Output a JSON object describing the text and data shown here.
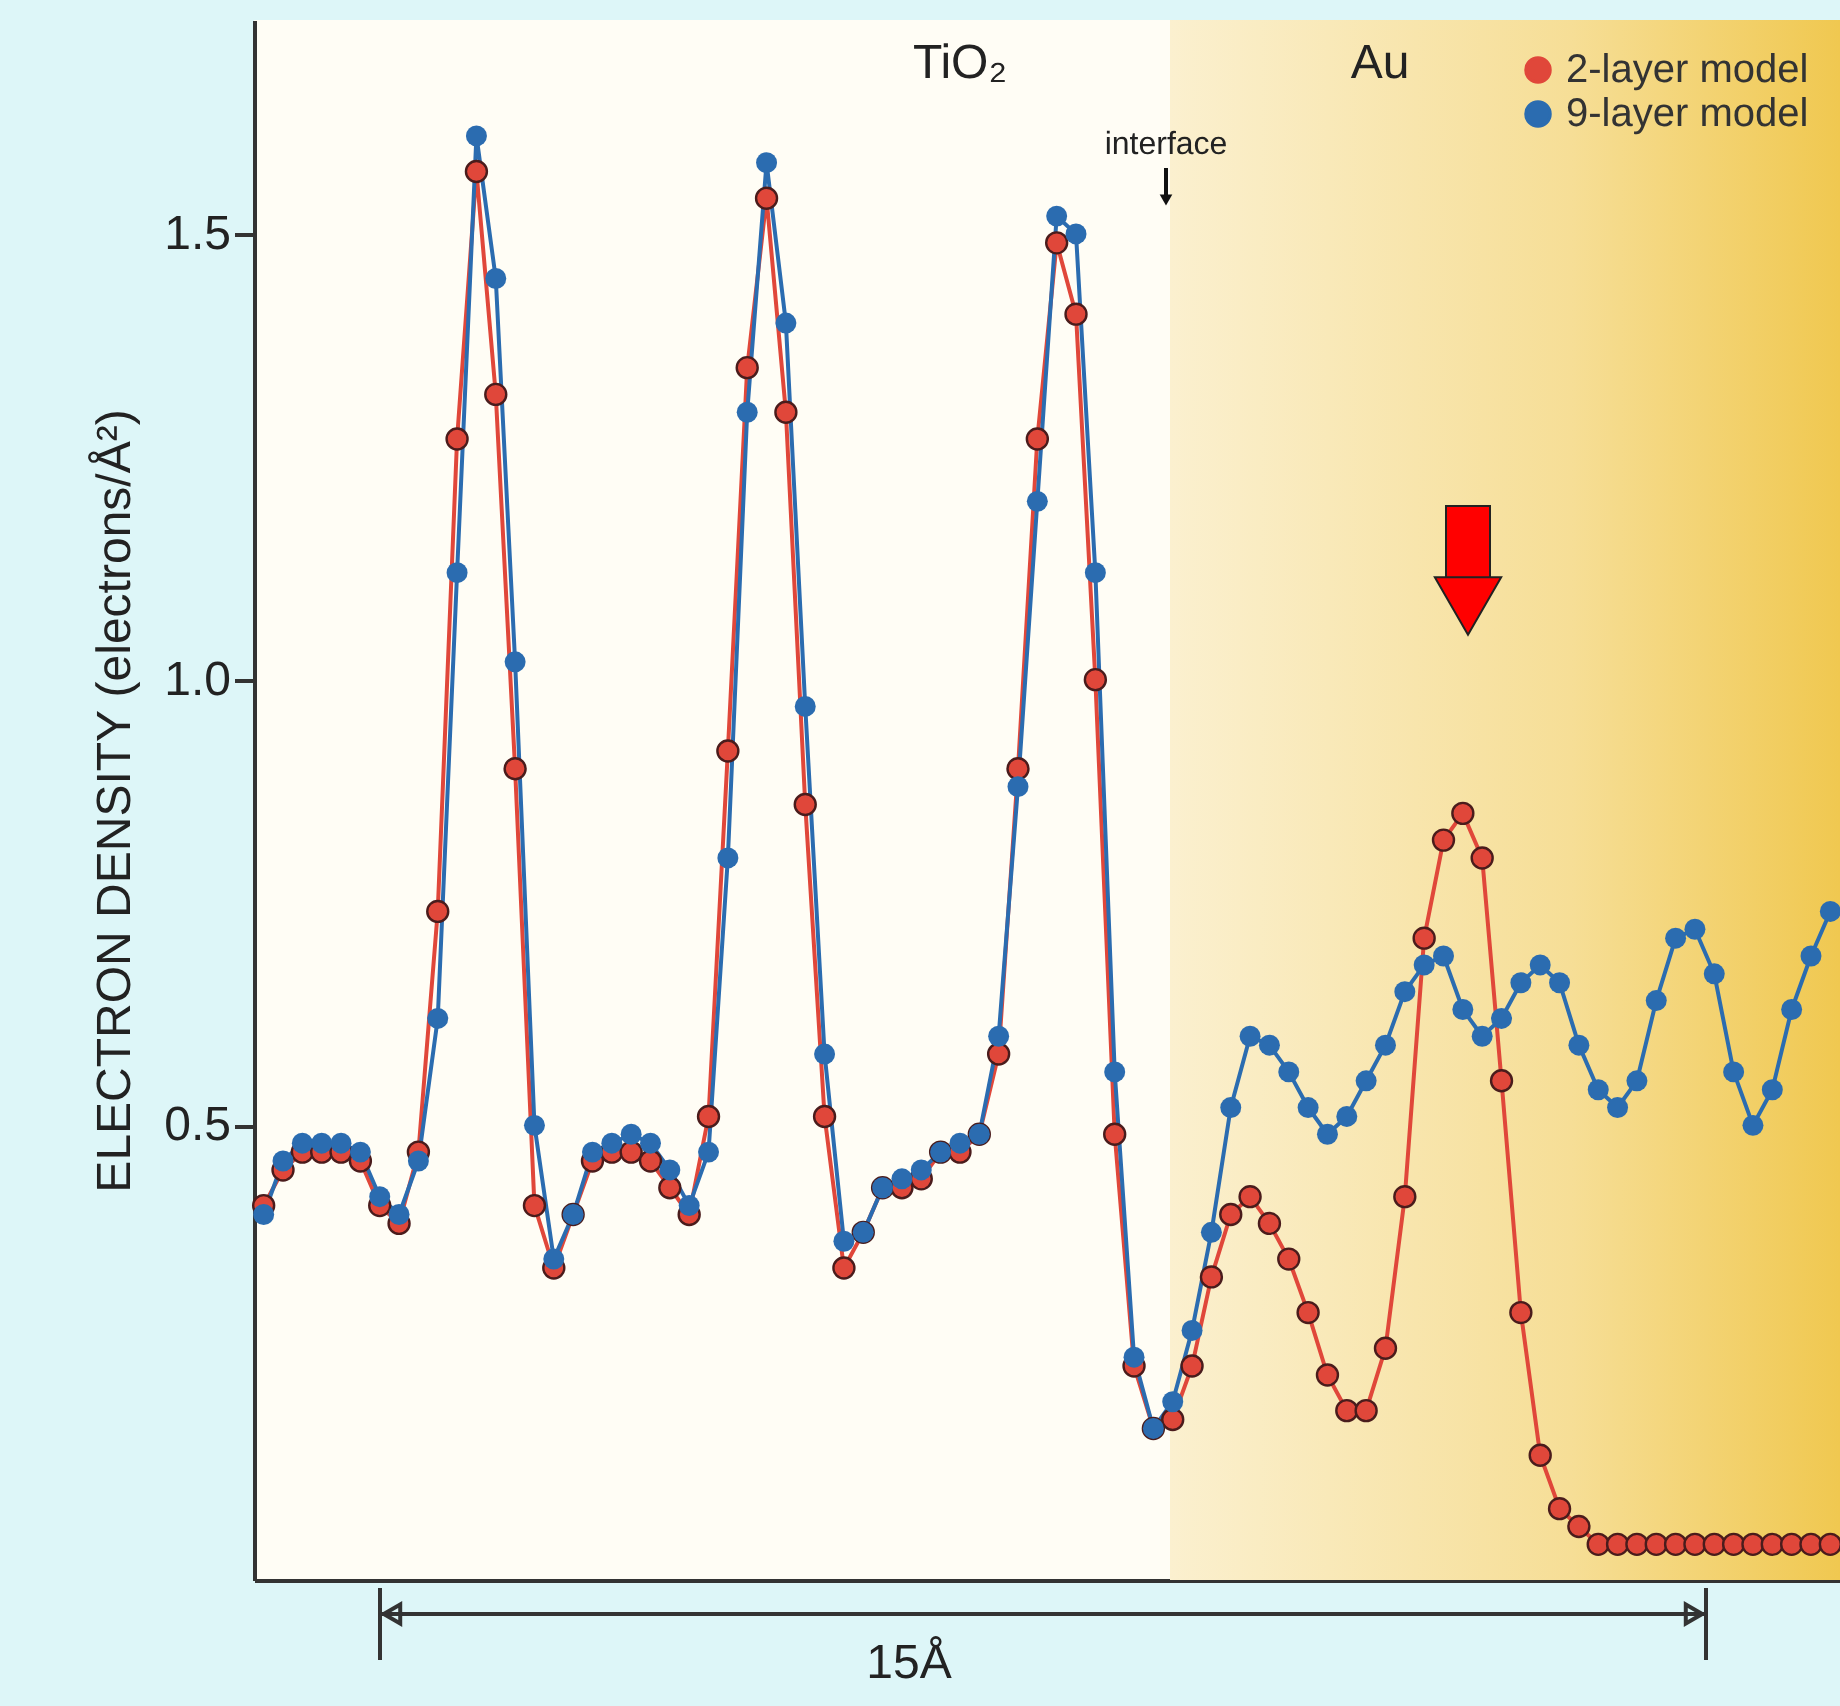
{
  "chart_data": {
    "type": "line",
    "ylabel": "ELECTRON DENSITY (electrons/Å²)",
    "categories": [
      null,
      null,
      null,
      null,
      null,
      null,
      null,
      null,
      null,
      null,
      null,
      null,
      null,
      null,
      null,
      null,
      null,
      null,
      null,
      null,
      null,
      null,
      null,
      null,
      null,
      null,
      null,
      null,
      null,
      null,
      null,
      null,
      null,
      null,
      null,
      null,
      null,
      null,
      null,
      null,
      null,
      null,
      null,
      null,
      null,
      null,
      null,
      null,
      null,
      null,
      null,
      null,
      null,
      null,
      null,
      null,
      null,
      null,
      null,
      null,
      null,
      null,
      null,
      null,
      null,
      null,
      null,
      null,
      null,
      null,
      null,
      null,
      null,
      null,
      null,
      null,
      null,
      null,
      null,
      null,
      null,
      null
    ],
    "ylim": [
      -0.01,
      1.74
    ],
    "yticks": [
      0.5,
      {
        "value": 1.0,
        "label": "1.0"
      },
      1.5
    ],
    "tick_labels": "y",
    "grid": false,
    "legend": "top right",
    "marker": "circle",
    "line_style": "solid",
    "series": [
      {
        "name": "2-layer model",
        "color": "#e0473a",
        "values": [
          0.41,
          0.45,
          0.47,
          0.47,
          0.47,
          0.46,
          0.41,
          0.39,
          0.47,
          0.74,
          1.27,
          1.57,
          1.32,
          0.9,
          0.41,
          0.34,
          0.4,
          0.46,
          0.47,
          0.47,
          0.46,
          0.43,
          0.4,
          0.51,
          0.92,
          1.35,
          1.54,
          1.3,
          0.86,
          0.51,
          0.34,
          0.38,
          0.43,
          0.43,
          0.44,
          0.47,
          0.47,
          0.49,
          0.58,
          0.9,
          1.27,
          1.49,
          1.41,
          1.0,
          0.49,
          0.23,
          0.16,
          0.17,
          0.23,
          0.33,
          0.4,
          0.42,
          0.39,
          0.35,
          0.29,
          0.22,
          0.18,
          0.18,
          0.25,
          0.42,
          0.71,
          0.82,
          0.85,
          0.8,
          0.55,
          0.29,
          0.13,
          0.07,
          0.05,
          0.03,
          0.03,
          0.03,
          0.03,
          0.03,
          0.03,
          0.03,
          0.03,
          0.03,
          0.03,
          0.03,
          0.03,
          0.03
        ]
      },
      {
        "name": "9-layer model",
        "color": "#2b6cb0",
        "values": [
          0.4,
          0.46,
          0.48,
          0.48,
          0.48,
          0.47,
          0.42,
          0.4,
          0.46,
          0.62,
          1.12,
          1.61,
          1.45,
          1.02,
          0.5,
          0.35,
          0.4,
          0.47,
          0.48,
          0.49,
          0.48,
          0.45,
          0.41,
          0.47,
          0.8,
          1.3,
          1.58,
          1.4,
          0.97,
          0.58,
          0.37,
          0.38,
          0.43,
          0.44,
          0.45,
          0.47,
          0.48,
          0.49,
          0.6,
          0.88,
          1.2,
          1.52,
          1.5,
          1.12,
          0.56,
          0.24,
          0.16,
          0.19,
          0.27,
          0.38,
          0.52,
          0.6,
          0.59,
          0.56,
          0.52,
          0.49,
          0.51,
          0.55,
          0.59,
          0.65,
          0.68,
          0.69,
          0.63,
          0.6,
          0.62,
          0.66,
          0.68,
          0.66,
          0.59,
          0.54,
          0.52,
          0.55,
          0.64,
          0.71,
          0.72,
          0.67,
          0.56,
          0.5,
          0.54,
          0.63,
          0.69,
          0.74
        ]
      }
    ],
    "annotations": [
      "TiO₂",
      "Au",
      "interface",
      "15Å"
    ]
  }
}
